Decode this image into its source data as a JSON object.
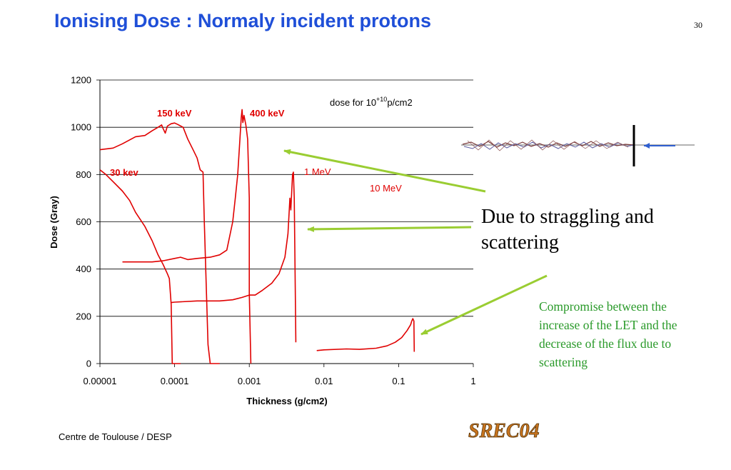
{
  "slide": {
    "title": "Ionising Dose : Normaly incident protons",
    "page_number": "30",
    "footer": "Centre de Toulouse / DESP",
    "logo_text": "SREC04",
    "callout_straggling": "Due to straggling and scattering",
    "callout_compromise": "Compromise between the increase of the LET and the decrease of the flux due to scattering"
  },
  "colors": {
    "title": "#1f4fd8",
    "curve": "#e00000",
    "arrow": "#9acd32",
    "compromise_text": "#2a9a2a"
  },
  "chart_data": {
    "type": "line",
    "xlabel": "Thickness (g/cm2)",
    "ylabel": "Dose (Gray)",
    "xscale": "log",
    "xlim": [
      1e-05,
      1
    ],
    "ylim": [
      0,
      1200
    ],
    "x_tick_labels": [
      "0.00001",
      "0.0001",
      "0.001",
      "0.01",
      "0.1",
      "1"
    ],
    "y_tick_labels": [
      "0",
      "200",
      "400",
      "600",
      "800",
      "1000",
      "1200"
    ],
    "grid": "horizontal",
    "annotation": {
      "prefix": "dose for 10",
      "superscript": "+10",
      "suffix": "p/cm2"
    },
    "series": [
      {
        "name": "30 kev",
        "points": [
          [
            1e-05,
            820
          ],
          [
            1.2e-05,
            800
          ],
          [
            1.5e-05,
            770
          ],
          [
            2e-05,
            730
          ],
          [
            2.5e-05,
            690
          ],
          [
            3e-05,
            640
          ],
          [
            4e-05,
            580
          ],
          [
            5e-05,
            520
          ],
          [
            6e-05,
            460
          ],
          [
            7e-05,
            420
          ],
          [
            8e-05,
            380
          ],
          [
            8.5e-05,
            360
          ],
          [
            9e-05,
            250
          ],
          [
            9.3e-05,
            0
          ],
          [
            0.00012,
            0
          ]
        ]
      },
      {
        "name": "150 keV",
        "points": [
          [
            1e-05,
            905
          ],
          [
            1.5e-05,
            912
          ],
          [
            2e-05,
            930
          ],
          [
            3e-05,
            960
          ],
          [
            4e-05,
            965
          ],
          [
            5e-05,
            985
          ],
          [
            6e-05,
            1000
          ],
          [
            6.7e-05,
            1010
          ],
          [
            7e-05,
            995
          ],
          [
            7.5e-05,
            975
          ],
          [
            8e-05,
            1005
          ],
          [
            9e-05,
            1015
          ],
          [
            0.0001,
            1018
          ],
          [
            0.00011,
            1012
          ],
          [
            0.00013,
            1000
          ],
          [
            0.00015,
            950
          ],
          [
            0.00018,
            900
          ],
          [
            0.0002,
            870
          ],
          [
            0.00022,
            820
          ],
          [
            0.00024,
            810
          ],
          [
            0.00025,
            600
          ],
          [
            0.00027,
            250
          ],
          [
            0.00028,
            80
          ],
          [
            0.0003,
            0
          ],
          [
            0.0004,
            0
          ]
        ]
      },
      {
        "name": "400 keV",
        "points": [
          [
            2e-05,
            430
          ],
          [
            3e-05,
            430
          ],
          [
            5e-05,
            430
          ],
          [
            7e-05,
            435
          ],
          [
            0.0001,
            445
          ],
          [
            0.00012,
            450
          ],
          [
            0.00015,
            440
          ],
          [
            0.0002,
            445
          ],
          [
            0.0003,
            450
          ],
          [
            0.0004,
            460
          ],
          [
            0.0005,
            480
          ],
          [
            0.0006,
            600
          ],
          [
            0.00065,
            700
          ],
          [
            0.0007,
            800
          ],
          [
            0.00075,
            950
          ],
          [
            0.00078,
            1040
          ],
          [
            0.0008,
            1075
          ],
          [
            0.00082,
            1020
          ],
          [
            0.00085,
            1050
          ],
          [
            0.0009,
            1010
          ],
          [
            0.00095,
            950
          ],
          [
            0.001,
            700
          ],
          [
            0.001,
            300
          ],
          [
            0.00105,
            0
          ]
        ]
      },
      {
        "name": "1 MeV",
        "points": [
          [
            9e-05,
            258
          ],
          [
            0.0001,
            260
          ],
          [
            0.0002,
            265
          ],
          [
            0.0004,
            265
          ],
          [
            0.0006,
            270
          ],
          [
            0.0008,
            280
          ],
          [
            0.001,
            290
          ],
          [
            0.0012,
            290
          ],
          [
            0.0015,
            310
          ],
          [
            0.002,
            340
          ],
          [
            0.0025,
            380
          ],
          [
            0.003,
            450
          ],
          [
            0.0033,
            550
          ],
          [
            0.0035,
            700
          ],
          [
            0.0036,
            650
          ],
          [
            0.0038,
            800
          ],
          [
            0.0039,
            810
          ],
          [
            0.004,
            700
          ],
          [
            0.0041,
            400
          ],
          [
            0.0042,
            100
          ],
          [
            0.0042,
            90
          ]
        ]
      },
      {
        "name": "10 MeV",
        "points": [
          [
            0.008,
            55
          ],
          [
            0.01,
            58
          ],
          [
            0.02,
            62
          ],
          [
            0.03,
            60
          ],
          [
            0.05,
            65
          ],
          [
            0.07,
            75
          ],
          [
            0.09,
            90
          ],
          [
            0.11,
            110
          ],
          [
            0.13,
            140
          ],
          [
            0.145,
            165
          ],
          [
            0.15,
            180
          ],
          [
            0.155,
            190
          ],
          [
            0.16,
            180
          ],
          [
            0.162,
            50
          ]
        ]
      }
    ]
  }
}
